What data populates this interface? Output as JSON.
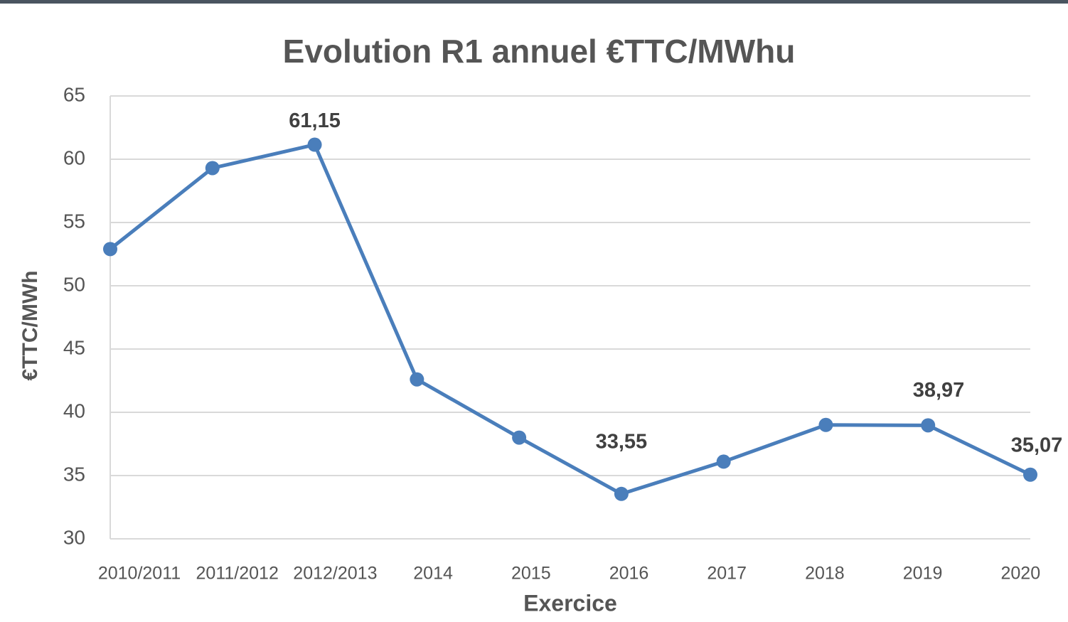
{
  "chart_data": {
    "type": "line",
    "title": "Evolution R1 annuel €TTC/MWhu",
    "x_label": "Exercice",
    "y_label": "€TTC/MWh",
    "categories": [
      "2010/2011",
      "2011/2012",
      "2012/2013",
      "2014",
      "2015",
      "2016",
      "2017",
      "2018",
      "2019",
      "2020"
    ],
    "values": [
      52.9,
      59.3,
      61.15,
      42.6,
      38.0,
      33.55,
      36.1,
      39.0,
      38.97,
      35.07
    ],
    "value_labels": [
      null,
      null,
      "61,15",
      null,
      null,
      "33,55",
      null,
      null,
      "38,97",
      "35,07"
    ],
    "color": "#4a7ebb",
    "ylim": [
      30,
      65
    ],
    "yticks": [
      30,
      35,
      40,
      45,
      50,
      55,
      60,
      65
    ],
    "grid": true
  }
}
